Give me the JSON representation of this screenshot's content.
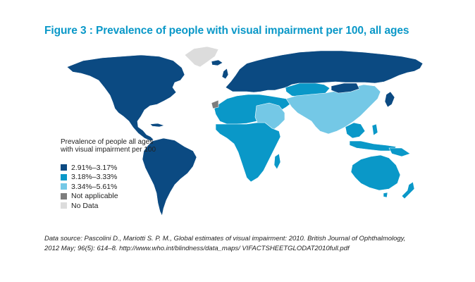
{
  "figure": {
    "title": "Figure 3 : Prevalence of people with visual impairment per 100, all ages"
  },
  "legend": {
    "title": "Prevalence of people all ages with visual impairment per 100",
    "items": [
      {
        "label": "2.91%–3.17%",
        "color": "#0b4a82"
      },
      {
        "label": "3.18%–3.33%",
        "color": "#0a98c8"
      },
      {
        "label": "3.34%–5.61%",
        "color": "#74c8e6"
      },
      {
        "label": "Not applicable",
        "color": "#7d7d7d"
      },
      {
        "label": "No Data",
        "color": "#dcdcdc"
      }
    ]
  },
  "source": {
    "text": "Data source: Pascolini D., Mariotti S. P. M., Global estimates of visual impairment: 2010. British Journal of Ophthalmology, 2012 May; 96(5): 614–8. http://www.who.int/blindness/data_maps/ VIFACTSHEETGLODAT2010full.pdf"
  },
  "colors": {
    "dark": "#0b4a82",
    "medium": "#0a98c8",
    "light": "#74c8e6",
    "not_applicable": "#7d7d7d",
    "no_data": "#dcdcdc",
    "border": "#ffffff"
  }
}
